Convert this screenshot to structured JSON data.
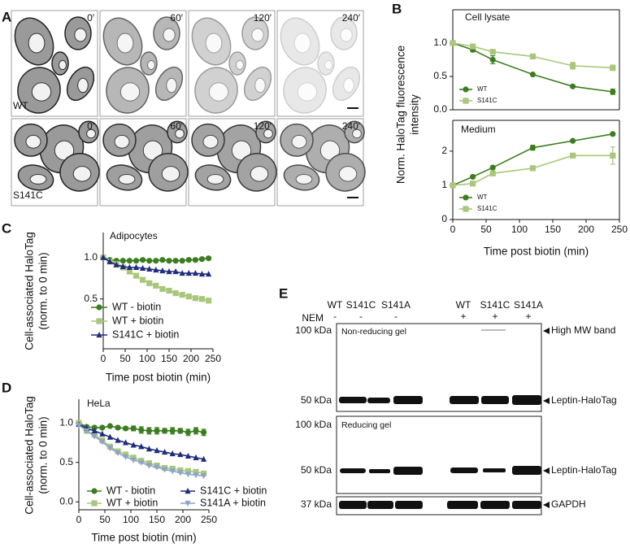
{
  "panel_a": {
    "label": "A",
    "times": [
      "0′",
      "60′",
      "120′",
      "240′"
    ],
    "rows": [
      "WT",
      "S141C"
    ]
  },
  "chart_data": [
    {
      "type": "line",
      "panel": "B",
      "title": "Cell lysate",
      "ylabel": [
        "Norm. HaloTag fluorescence",
        "intensity"
      ],
      "x": [
        0,
        30,
        60,
        120,
        180,
        240
      ],
      "xlim": [
        0,
        250
      ],
      "ylim": [
        0,
        1.5
      ],
      "yticks": [
        {
          "value": 0,
          "label": "0.0"
        },
        0.5,
        {
          "value": 1,
          "label": "1.0"
        }
      ],
      "legend": "lower left",
      "series": [
        {
          "name": "WT",
          "color": "#3b7d1f",
          "marker": "circle",
          "values": [
            1.0,
            0.9,
            0.75,
            0.53,
            0.35,
            0.27
          ],
          "errors": [
            0,
            0.03,
            0.06,
            0,
            0,
            0.04
          ]
        },
        {
          "name": "S141C",
          "color": "#a9c77b",
          "marker": "square",
          "values": [
            1.0,
            0.95,
            0.87,
            0.8,
            0.66,
            0.63
          ],
          "errors": [
            0,
            0.02,
            0.02,
            0,
            0.05,
            0.04
          ]
        }
      ]
    },
    {
      "type": "line",
      "title": "Medium",
      "xlabel": "Time post biotin (min)",
      "x": [
        0,
        30,
        60,
        120,
        180,
        240
      ],
      "xlim": [
        0,
        250
      ],
      "ylim": [
        0,
        2.9
      ],
      "xticks": [
        0,
        50,
        100,
        150,
        200,
        250
      ],
      "yticks": [
        0,
        1,
        2
      ],
      "legend": "lower left",
      "series": [
        {
          "name": "WT",
          "color": "#3b7d1f",
          "marker": "circle",
          "values": [
            1.0,
            1.25,
            1.52,
            2.1,
            2.3,
            2.5
          ],
          "errors": [
            0,
            0,
            0,
            0.07,
            0,
            0
          ]
        },
        {
          "name": "S141C",
          "color": "#a9c77b",
          "marker": "square",
          "values": [
            1.0,
            1.05,
            1.35,
            1.5,
            1.87,
            1.87
          ],
          "errors": [
            0,
            0,
            0.07,
            0,
            0,
            0.25
          ]
        }
      ]
    },
    {
      "type": "line",
      "panel": "C",
      "title": "Adipocytes",
      "ylabel": [
        "Cell-associated HaloTag",
        "(norm. to 0 min)"
      ],
      "xlabel": "Time post biotin (min)",
      "x": [
        0,
        15,
        30,
        45,
        60,
        75,
        90,
        105,
        120,
        135,
        150,
        165,
        180,
        195,
        210,
        225,
        240
      ],
      "xlim": [
        0,
        250
      ],
      "ylim": [
        -0.1,
        1.3
      ],
      "xticks": [
        0,
        50,
        100,
        150,
        200,
        250
      ],
      "yticks": [
        0.5,
        {
          "value": 1,
          "label": "1.0"
        }
      ],
      "legend": "lower left",
      "series": [
        {
          "name": "WT - biotin",
          "color": "#3b7d1f",
          "marker": "circle",
          "values": [
            1.0,
            0.97,
            0.96,
            0.96,
            0.96,
            0.96,
            0.97,
            0.96,
            0.96,
            0.97,
            0.96,
            0.96,
            0.96,
            0.97,
            0.97,
            0.98,
            0.99
          ]
        },
        {
          "name": "WT + biotin",
          "color": "#a9c77b",
          "marker": "square",
          "values": [
            1.0,
            0.95,
            0.92,
            0.88,
            0.83,
            0.78,
            0.73,
            0.69,
            0.66,
            0.62,
            0.6,
            0.57,
            0.55,
            0.53,
            0.51,
            0.5,
            0.48
          ]
        },
        {
          "name": "S141C + biotin",
          "color": "#1f2d7b",
          "marker": "triangle",
          "values": [
            1.0,
            0.95,
            0.91,
            0.89,
            0.88,
            0.88,
            0.87,
            0.86,
            0.85,
            0.84,
            0.83,
            0.83,
            0.81,
            0.81,
            0.81,
            0.8,
            0.8
          ]
        }
      ]
    },
    {
      "type": "line",
      "panel": "D",
      "title": "HeLa",
      "ylabel": [
        "Cell-associated HaloTag",
        "(norm. to 0 min)"
      ],
      "xlabel": "Time post biotin (min)",
      "x": [
        0,
        15,
        30,
        45,
        60,
        75,
        90,
        105,
        120,
        135,
        150,
        165,
        180,
        195,
        210,
        225,
        240
      ],
      "xlim": [
        0,
        250
      ],
      "ylim": [
        -0.1,
        1.3
      ],
      "xticks": [
        0,
        50,
        100,
        150,
        200,
        250
      ],
      "yticks": [
        {
          "value": 0,
          "label": "0.0"
        },
        0.5,
        {
          "value": 1,
          "label": "1.0"
        }
      ],
      "legend": "lower left",
      "legend_columns": 2,
      "series": [
        {
          "name": "WT - biotin",
          "color": "#3b7d1f",
          "marker": "circle",
          "values": [
            1.0,
            0.95,
            0.94,
            0.94,
            0.96,
            0.94,
            0.93,
            0.93,
            0.91,
            0.9,
            0.9,
            0.9,
            0.9,
            0.9,
            0.88,
            0.9,
            0.88
          ],
          "errors": [
            0,
            0.02,
            0.02,
            0.01,
            0.01,
            0.02,
            0.02,
            0.03,
            0.04,
            0.04,
            0.04,
            0.03,
            0.04,
            0.03,
            0.04,
            0.04,
            0.04
          ]
        },
        {
          "name": "WT + biotin",
          "color": "#a9c77b",
          "marker": "square",
          "values": [
            1.0,
            0.9,
            0.85,
            0.78,
            0.7,
            0.64,
            0.6,
            0.56,
            0.52,
            0.49,
            0.46,
            0.43,
            0.42,
            0.4,
            0.39,
            0.38,
            0.36
          ]
        },
        {
          "name": "S141C + biotin",
          "color": "#1f2d7b",
          "marker": "triangle",
          "values": [
            0.98,
            0.93,
            0.9,
            0.86,
            0.82,
            0.78,
            0.75,
            0.72,
            0.7,
            0.67,
            0.65,
            0.63,
            0.61,
            0.6,
            0.58,
            0.56,
            0.54
          ]
        },
        {
          "name": "S141A + biotin",
          "color": "#8ea3c9",
          "marker": "triangle-down",
          "values": [
            0.97,
            0.9,
            0.83,
            0.76,
            0.68,
            0.62,
            0.57,
            0.53,
            0.5,
            0.46,
            0.44,
            0.41,
            0.39,
            0.37,
            0.35,
            0.34,
            0.33
          ]
        }
      ]
    }
  ],
  "panel_e": {
    "label": "E",
    "lanes": [
      "WT",
      "S141C",
      "S141A",
      "WT",
      "S141C",
      "S141A"
    ],
    "treatment": "NEM",
    "treatment_signs": [
      "-",
      "-",
      "-",
      "+",
      "+",
      "+"
    ],
    "blots": [
      {
        "title": "Non-reducing gel",
        "markers": [
          "100 kDa",
          "50 kDa"
        ],
        "bands": [
          "High MW band",
          "Leptin-HaloTag"
        ]
      },
      {
        "title": "Reducing gel",
        "markers": [
          "100 kDa",
          "50 kDa"
        ],
        "bands": [
          "Leptin-HaloTag"
        ]
      },
      {
        "markers": [
          "37 kDa"
        ],
        "bands": [
          "GAPDH"
        ]
      }
    ]
  }
}
